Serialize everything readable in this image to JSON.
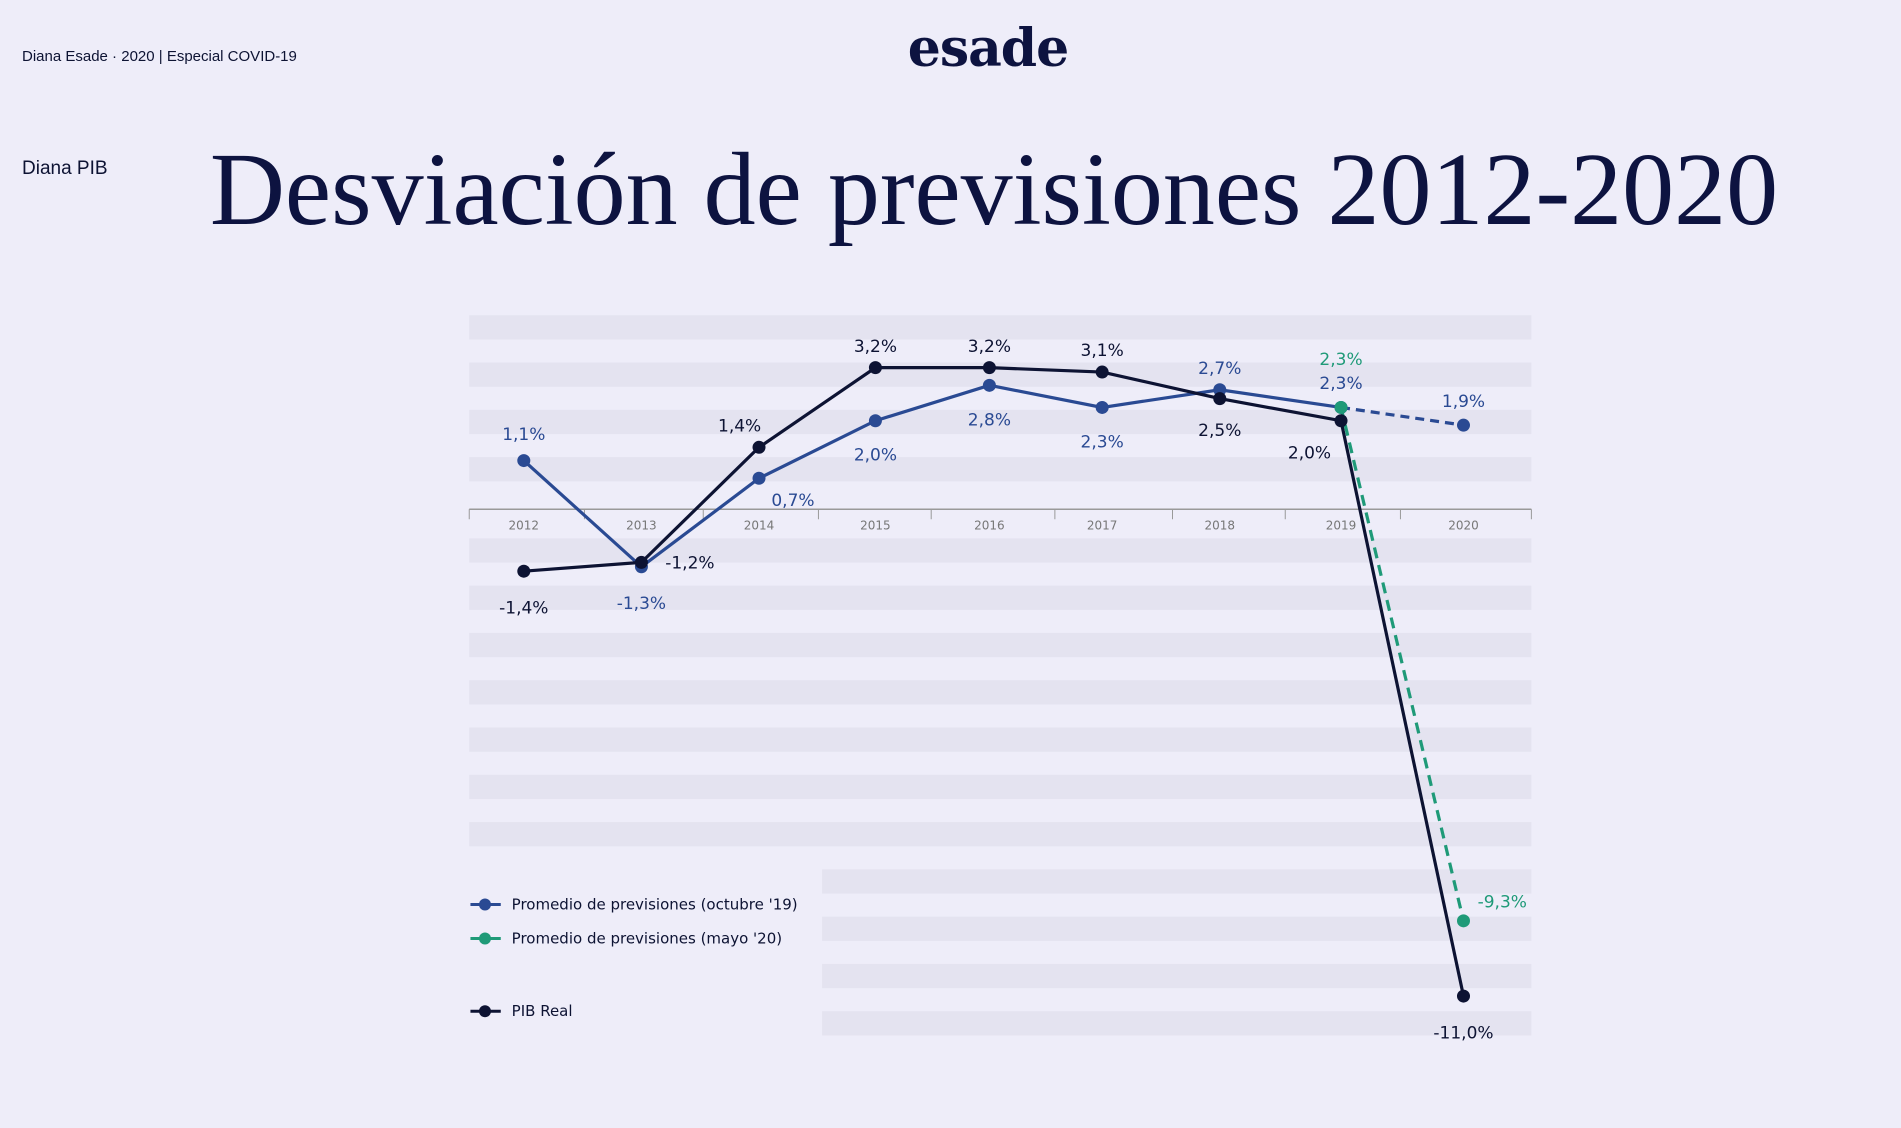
{
  "header": {
    "breadcrumb": "Diana Esade · 2020 | Especial COVID-19",
    "logo": "esade",
    "section": "Diana PIB"
  },
  "colors": {
    "oct19": "#2a4a93",
    "may20": "#1f9a78",
    "real": "#0d1333",
    "band": "#e4e3f0",
    "background": "#eeedf9"
  },
  "chart_data": {
    "type": "line",
    "title": "Desviación de previsiones 2012-2020",
    "categories": [
      "2012",
      "2013",
      "2014",
      "2015",
      "2016",
      "2017",
      "2018",
      "2019",
      "2020"
    ],
    "legend_position": "bottom-left",
    "series": [
      {
        "name": "Promedio de previsiones (octubre '19)",
        "color": "#2a4a93",
        "values": [
          1.1,
          -1.3,
          0.7,
          2.0,
          2.8,
          2.3,
          2.7,
          2.3,
          1.9
        ],
        "labels": [
          "1,1%",
          "-1,3%",
          "0,7%",
          "2,0%",
          "2,8%",
          "2,3%",
          "2,7%",
          "2,3%",
          "1,9%"
        ],
        "dashed_from": "2019"
      },
      {
        "name": "Promedio de previsiones (mayo '20)",
        "color": "#1f9a78",
        "values": [
          null,
          null,
          null,
          null,
          null,
          null,
          null,
          2.3,
          -9.3
        ],
        "labels": [
          "",
          "",
          "",
          "",
          "",
          "",
          "",
          "2,3%",
          "-9,3%"
        ],
        "dashed": true
      },
      {
        "name": "PIB Real",
        "color": "#0d1333",
        "values": [
          -1.4,
          -1.2,
          1.4,
          3.2,
          3.2,
          3.1,
          2.5,
          2.0,
          -11.0
        ],
        "labels": [
          "-1,4%",
          "-1,2%",
          "1,4%",
          "3,2%",
          "3,2%",
          "3,1%",
          "2,5%",
          "2,0%",
          "-11,0%"
        ]
      }
    ]
  }
}
